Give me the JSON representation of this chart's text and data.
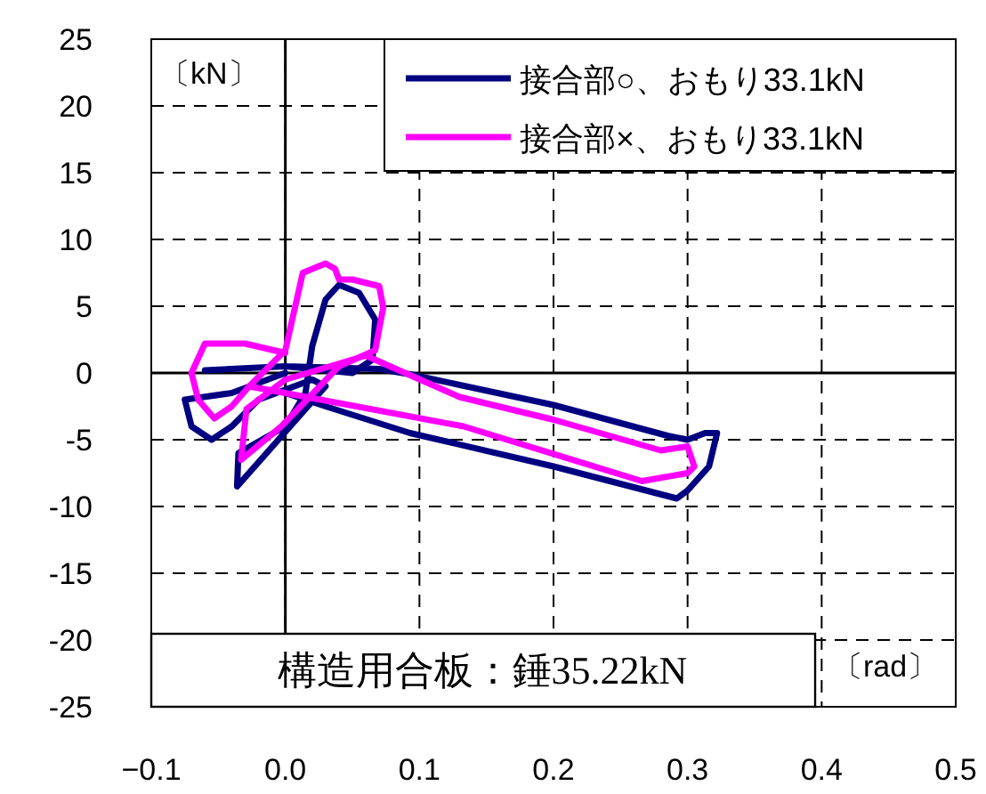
{
  "chart_data": {
    "type": "line",
    "xlim": [
      -0.1,
      0.5
    ],
    "xticks": [
      {
        "value": -0.1,
        "label": "−0.1"
      },
      {
        "value": 0,
        "label": "0.0"
      },
      0.1,
      0.2,
      0.3,
      0.4,
      0.5
    ],
    "ylim": [
      -25,
      25
    ],
    "yticks": [
      -25,
      -20,
      -15,
      -10,
      -5,
      0,
      5,
      10,
      15,
      20,
      25
    ],
    "grid": true,
    "legend": "top right",
    "marker": "none",
    "line_style": "solid",
    "annotations": [
      "〔kN〕",
      "〔rad〕",
      "構造用合板：錘35.22kN"
    ],
    "series": [
      {
        "name": "接合部○、おもり33.1kN",
        "color": "#000080",
        "x": [
          0.0,
          -0.04,
          -0.075,
          -0.07,
          -0.055,
          -0.04,
          -0.02,
          0.02,
          0.03,
          -0.036,
          -0.035,
          0.0,
          0.015,
          0.02,
          0.03,
          0.04,
          0.055,
          0.067,
          0.065,
          0.05,
          0.0,
          -0.06,
          0.0,
          0.07,
          0.093,
          0.2,
          0.285,
          0.3,
          0.313,
          0.322,
          0.316,
          0.3,
          0.292,
          0.2,
          0.093,
          0.03,
          0.0
        ],
        "values": [
          0.0,
          -1.5,
          -2.0,
          -4.0,
          -5.0,
          -4.0,
          -2.0,
          -0.5,
          -1.0,
          -8.5,
          -6.0,
          -4.0,
          -1.5,
          2.0,
          5.5,
          6.6,
          6.0,
          4.0,
          1.0,
          0.0,
          0.5,
          0.2,
          0.5,
          0.3,
          -0.1,
          -2.4,
          -4.7,
          -5.0,
          -4.5,
          -4.5,
          -7.0,
          -8.8,
          -9.4,
          -7.0,
          -4.5,
          -2.5,
          -1.5
        ]
      },
      {
        "name": "接合部×、おもり33.1kN",
        "color": "#ff00ff",
        "x": [
          0.0,
          -0.03,
          -0.06,
          -0.07,
          -0.065,
          -0.053,
          -0.04,
          -0.027,
          0.0,
          0.013,
          0.03,
          0.037,
          0.04,
          0.05,
          0.07,
          0.073,
          0.067,
          0.04,
          -0.003,
          -0.033,
          -0.029,
          0.0,
          0.06,
          0.13,
          0.2,
          0.28,
          0.3,
          0.305,
          0.3,
          0.266,
          0.133,
          -0.027
        ],
        "values": [
          1.5,
          2.2,
          2.2,
          0.0,
          -2.0,
          -3.4,
          -2.5,
          -1.0,
          1.7,
          7.5,
          8.2,
          7.8,
          7.0,
          7.0,
          6.5,
          4.9,
          1.7,
          0.5,
          -4.0,
          -6.5,
          -2.7,
          -0.5,
          1.3,
          -1.8,
          -3.5,
          -5.8,
          -5.5,
          -7.0,
          -7.5,
          -8.1,
          -4.0,
          -1.0
        ]
      }
    ]
  }
}
